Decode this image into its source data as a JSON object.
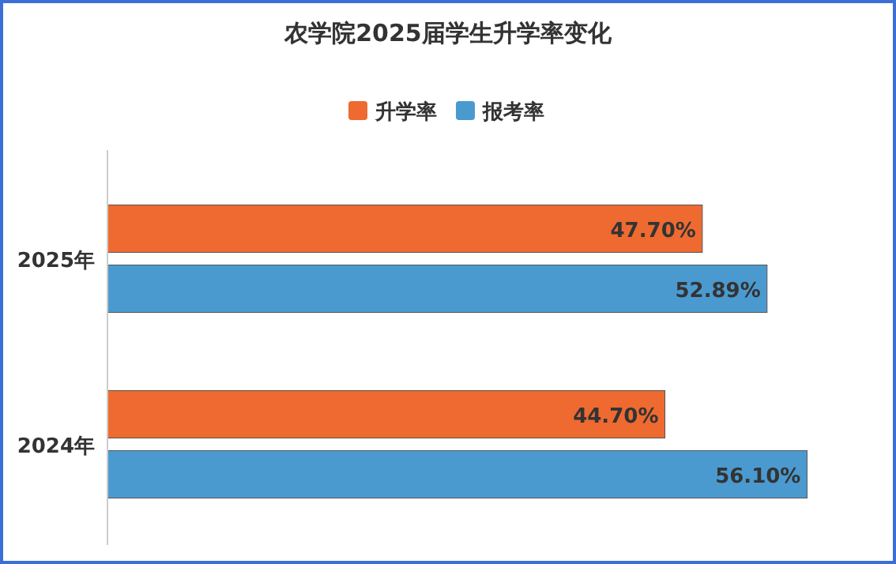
{
  "chart_data": {
    "type": "bar",
    "orientation": "horizontal",
    "title": "农学院2025届学生升学率变化",
    "categories": [
      "2025年",
      "2024年"
    ],
    "series": [
      {
        "name": "升学率",
        "color": "#ee6a30",
        "values": [
          47.7,
          44.7
        ],
        "value_labels": [
          "47.70%",
          "44.70%"
        ]
      },
      {
        "name": "报考率",
        "color": "#4a9ad0",
        "values": [
          52.89,
          56.1
        ],
        "value_labels": [
          "52.89%",
          "56.10%"
        ]
      }
    ],
    "legend": "top"
  }
}
